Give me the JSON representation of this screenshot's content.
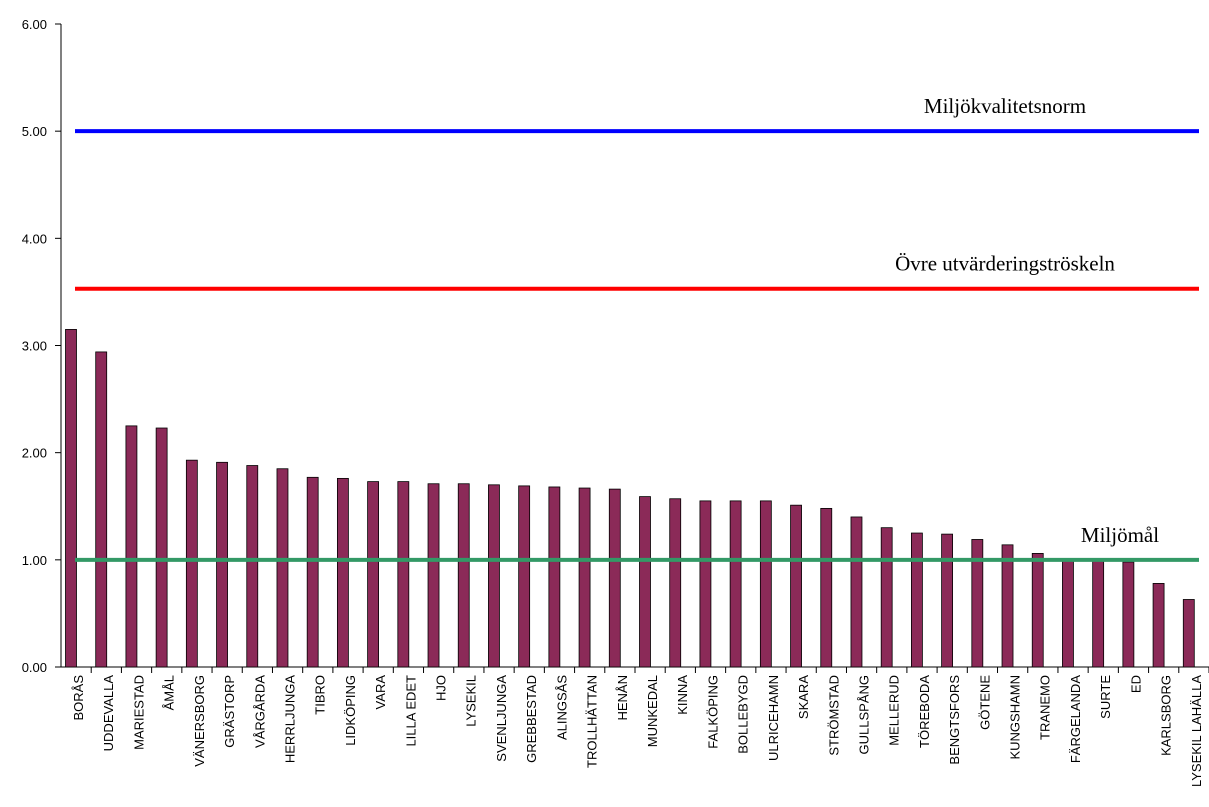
{
  "chart_data": {
    "type": "bar",
    "categories": [
      "BORÅS",
      "UDDEVALLA",
      "MARIESTAD",
      "ÅMÅL",
      "VÄNERSBORG",
      "GRÄSTORP",
      "VÅRGÅRDA",
      "HERRLJUNGA",
      "TIBRO",
      "LIDKÖPING",
      "VARA",
      "LILLA EDET",
      "HJO",
      "LYSEKIL",
      "SVENLJUNGA",
      "GREBBESTAD",
      "ALINGSÅS",
      "TROLLHÄTTAN",
      "HENÅN",
      "MUNKEDAL",
      "KINNA",
      "FALKÖPING",
      "BOLLEBYGD",
      "ULRICEHAMN",
      "SKARA",
      "STRÖMSTAD",
      "GULLSPÅNG",
      "MELLERUD",
      "TÖREBODA",
      "BENGTSFORS",
      "GÖTENE",
      "KUNGSHAMN",
      "TRANEMO",
      "FÄRGELANDA",
      "SURTE",
      "ED",
      "KARLSBORG",
      "LYSEKIL LAHÄLLA"
    ],
    "values": [
      3.15,
      2.94,
      2.25,
      2.23,
      1.93,
      1.91,
      1.88,
      1.85,
      1.77,
      1.76,
      1.73,
      1.73,
      1.71,
      1.71,
      1.7,
      1.69,
      1.68,
      1.67,
      1.66,
      1.59,
      1.57,
      1.55,
      1.55,
      1.55,
      1.51,
      1.48,
      1.4,
      1.3,
      1.25,
      1.24,
      1.19,
      1.14,
      1.06,
      1.0,
      0.99,
      0.98,
      0.78,
      0.63
    ],
    "color": "#8b2a58",
    "ylim": [
      0,
      6
    ],
    "yticks": [
      {
        "value": 0,
        "label": "0.00"
      },
      {
        "value": 1,
        "label": "1.00"
      },
      {
        "value": 2,
        "label": "2.00"
      },
      {
        "value": 3,
        "label": "3.00"
      },
      {
        "value": 4,
        "label": "4.00"
      },
      {
        "value": 5,
        "label": "5.00"
      },
      {
        "value": 6,
        "label": "6.00"
      }
    ],
    "reference_lines": [
      {
        "label": "Miljökvalitetsnorm",
        "value": 5,
        "color": "#0000ff"
      },
      {
        "label": "Övre utvärderingströskeln",
        "value": 3.53,
        "color": "#ff0000"
      },
      {
        "label": "Miljömål",
        "value": 1,
        "color": "#339966"
      }
    ]
  }
}
